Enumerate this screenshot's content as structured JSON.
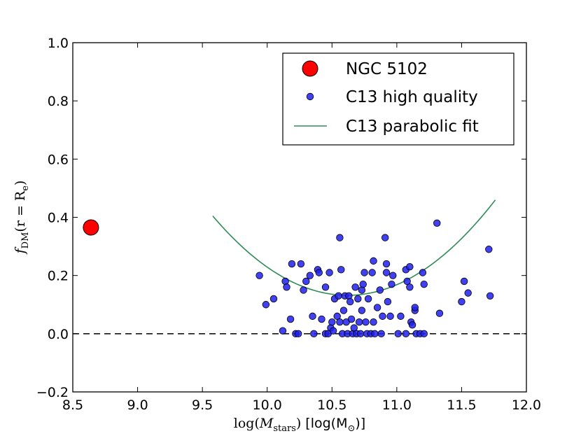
{
  "chart_data": {
    "type": "scatter",
    "title": "",
    "xlabel": "log(M_stars) [log(M_sun)]",
    "xlabel_parts": {
      "log_open": "log(",
      "m": "M",
      "stars": "stars",
      "log_close": ")",
      "bracket_open": "[log(M",
      "sun": "⊙",
      "bracket_close": ")]"
    },
    "ylabel_parts": {
      "f": "f",
      "dm": "DM",
      "mid": "(r = R",
      "e": "e",
      "close": ")"
    },
    "xlim": [
      8.5,
      12.0
    ],
    "ylim": [
      -0.2,
      1.0
    ],
    "xticks": [
      8.5,
      9.0,
      9.5,
      10.0,
      10.5,
      11.0,
      11.5,
      12.0
    ],
    "xtick_labels": [
      "8.5",
      "9.0",
      "9.5",
      "10.0",
      "10.5",
      "11.0",
      "11.5",
      "12.0"
    ],
    "yticks": [
      -0.2,
      0.0,
      0.2,
      0.4,
      0.6,
      0.8,
      1.0
    ],
    "ytick_labels": [
      "−0.2",
      "0.0",
      "0.2",
      "0.4",
      "0.6",
      "0.8",
      "1.0"
    ],
    "legend_position": "top-right",
    "series": [
      {
        "name": "NGC 5102",
        "kind": "marker",
        "color": "#ff0000",
        "points": [
          [
            8.64,
            0.365
          ]
        ]
      },
      {
        "name": "C13 high quality",
        "kind": "scatter",
        "color": "#2020ee",
        "points": [
          [
            9.94,
            0.2
          ],
          [
            9.99,
            0.1
          ],
          [
            10.05,
            0.12
          ],
          [
            10.12,
            0.01
          ],
          [
            10.14,
            0.18
          ],
          [
            10.15,
            0.16
          ],
          [
            10.18,
            0.05
          ],
          [
            10.19,
            0.24
          ],
          [
            10.22,
            0.0
          ],
          [
            10.24,
            0.0
          ],
          [
            10.26,
            0.24
          ],
          [
            10.28,
            0.15
          ],
          [
            10.3,
            0.18
          ],
          [
            10.33,
            0.2
          ],
          [
            10.35,
            0.06
          ],
          [
            10.36,
            0.0
          ],
          [
            10.39,
            0.22
          ],
          [
            10.4,
            0.21
          ],
          [
            10.42,
            0.05
          ],
          [
            10.45,
            0.16
          ],
          [
            10.45,
            0.0
          ],
          [
            10.47,
            0.0
          ],
          [
            10.48,
            0.21
          ],
          [
            10.49,
            0.02
          ],
          [
            10.5,
            0.04
          ],
          [
            10.51,
            0.01
          ],
          [
            10.52,
            0.12
          ],
          [
            10.54,
            0.06
          ],
          [
            10.55,
            0.13
          ],
          [
            10.56,
            0.04
          ],
          [
            10.56,
            0.33
          ],
          [
            10.57,
            0.22
          ],
          [
            10.58,
            0.0
          ],
          [
            10.59,
            0.08
          ],
          [
            10.6,
            0.13
          ],
          [
            10.61,
            0.04
          ],
          [
            10.62,
            0.0
          ],
          [
            10.63,
            0.13
          ],
          [
            10.64,
            0.11
          ],
          [
            10.65,
            0.05
          ],
          [
            10.66,
            0.0
          ],
          [
            10.67,
            0.02
          ],
          [
            10.68,
            0.16
          ],
          [
            10.69,
            0.0
          ],
          [
            10.7,
            0.12
          ],
          [
            10.71,
            0.04
          ],
          [
            10.72,
            0.0
          ],
          [
            10.73,
            0.15
          ],
          [
            10.73,
            0.08
          ],
          [
            10.74,
            0.17
          ],
          [
            10.75,
            0.21
          ],
          [
            10.76,
            0.04
          ],
          [
            10.77,
            0.0
          ],
          [
            10.78,
            0.12
          ],
          [
            10.8,
            0.0
          ],
          [
            10.81,
            0.21
          ],
          [
            10.82,
            0.25
          ],
          [
            10.82,
            0.04
          ],
          [
            10.83,
            0.0
          ],
          [
            10.85,
            0.09
          ],
          [
            10.87,
            0.15
          ],
          [
            10.88,
            0.0
          ],
          [
            10.89,
            0.06
          ],
          [
            10.91,
            0.33
          ],
          [
            10.92,
            0.24
          ],
          [
            10.92,
            0.21
          ],
          [
            10.93,
            0.11
          ],
          [
            10.95,
            0.06
          ],
          [
            10.96,
            0.17
          ],
          [
            10.97,
            0.2
          ],
          [
            11.01,
            0.0
          ],
          [
            11.03,
            0.06
          ],
          [
            11.07,
            0.0
          ],
          [
            11.07,
            0.22
          ],
          [
            11.08,
            0.18
          ],
          [
            11.1,
            0.23
          ],
          [
            11.1,
            0.16
          ],
          [
            11.11,
            0.04
          ],
          [
            11.12,
            0.03
          ],
          [
            11.14,
            0.08
          ],
          [
            11.14,
            0.09
          ],
          [
            11.15,
            0.0
          ],
          [
            11.18,
            0.0
          ],
          [
            11.2,
            0.21
          ],
          [
            11.21,
            0.17
          ],
          [
            11.21,
            0.0
          ],
          [
            11.31,
            0.38
          ],
          [
            11.33,
            0.07
          ],
          [
            11.5,
            0.11
          ],
          [
            11.52,
            0.18
          ],
          [
            11.55,
            0.14
          ],
          [
            11.71,
            0.29
          ],
          [
            11.72,
            0.13
          ]
        ]
      },
      {
        "name": "C13 parabolic fit",
        "kind": "line",
        "color": "#2e8b57",
        "fit": {
          "vertex_x": 10.62,
          "vertex_y": 0.132,
          "curvature": 0.252,
          "x_start": 9.58,
          "x_end": 11.76
        }
      }
    ],
    "reference_line": {
      "y": 0.0,
      "style": "dashed",
      "color": "#000000"
    }
  }
}
